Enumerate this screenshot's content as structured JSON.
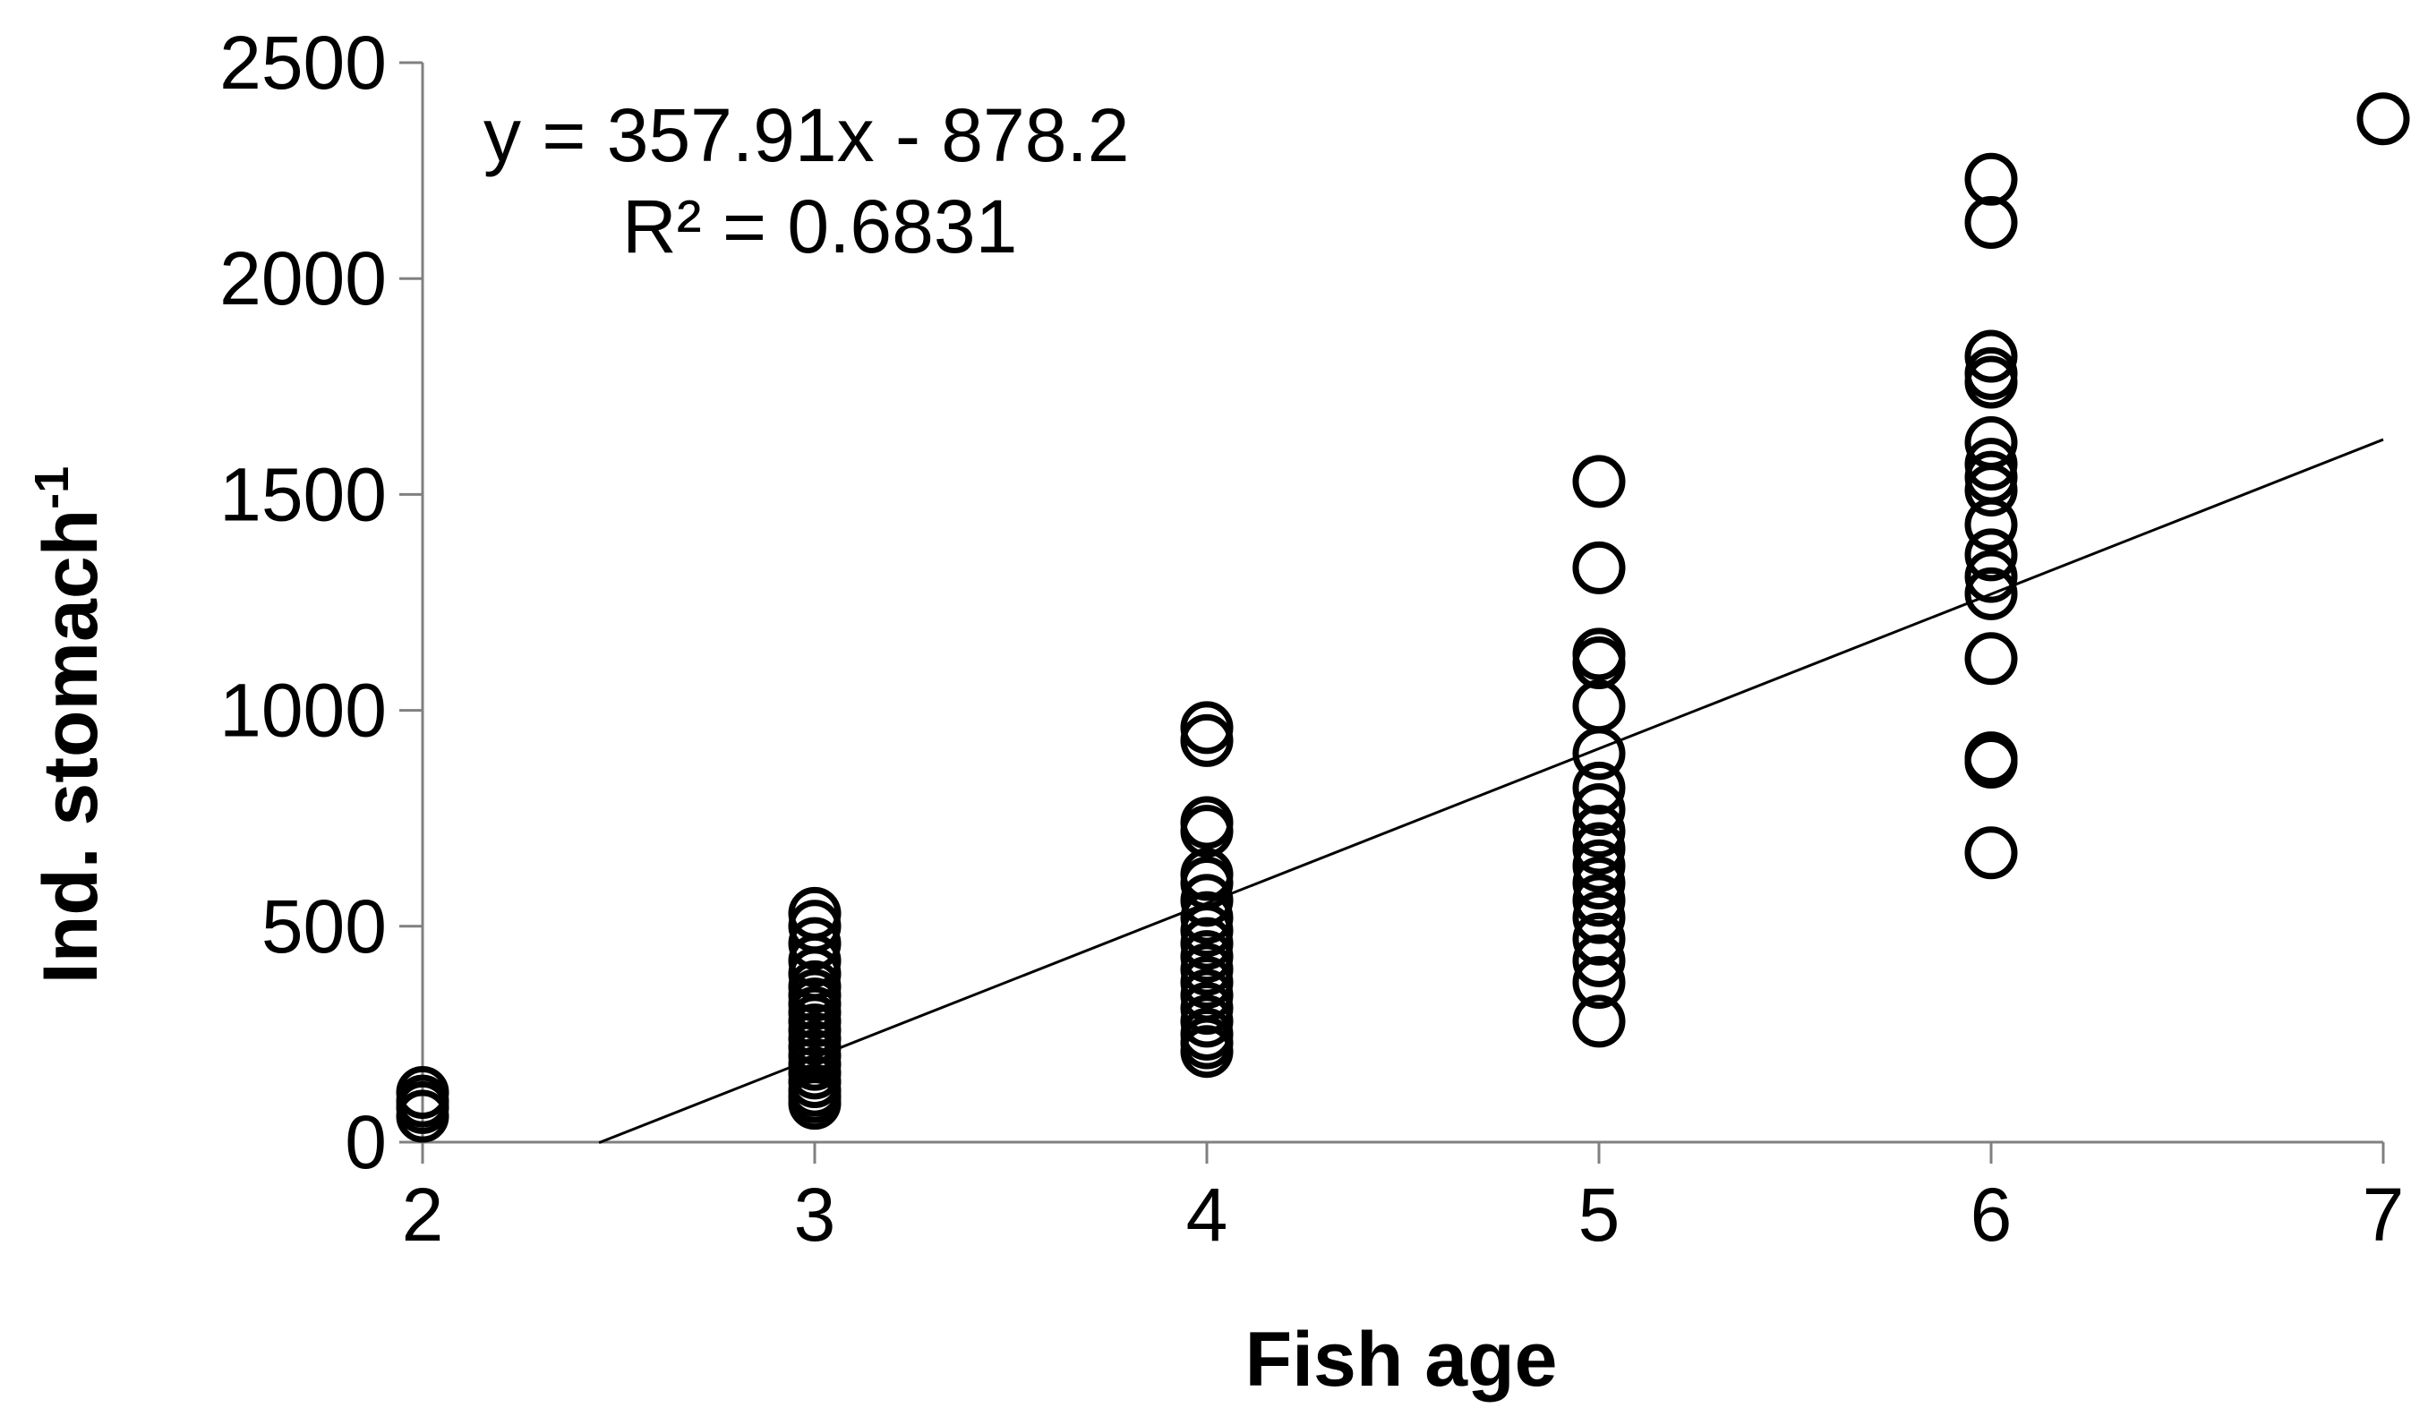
{
  "chart_data": {
    "type": "scatter",
    "title": "",
    "xlabel": "Fish age",
    "ylabel_main": "Ind. stomach",
    "ylabel_superscript": "-1",
    "xlim": [
      2,
      7
    ],
    "ylim": [
      0,
      2500
    ],
    "xticks": [
      "2",
      "3",
      "4",
      "5",
      "6",
      "7"
    ],
    "yticks": [
      "0",
      "500",
      "1000",
      "1500",
      "2000",
      "2500"
    ],
    "grid": false,
    "legend": "none",
    "trendline": {
      "equation": "y = 357.91x - 878.2",
      "r2_label": "R² = 0.6831",
      "slope": 357.91,
      "intercept": -878.2,
      "x_range": [
        2.45,
        7
      ]
    },
    "points": [
      {
        "x": 2,
        "y": 60
      },
      {
        "x": 2,
        "y": 80
      },
      {
        "x": 2,
        "y": 95
      },
      {
        "x": 2,
        "y": 115
      },
      {
        "x": 3,
        "y": 90
      },
      {
        "x": 3,
        "y": 105
      },
      {
        "x": 3,
        "y": 120
      },
      {
        "x": 3,
        "y": 140
      },
      {
        "x": 3,
        "y": 160
      },
      {
        "x": 3,
        "y": 180
      },
      {
        "x": 3,
        "y": 200
      },
      {
        "x": 3,
        "y": 220
      },
      {
        "x": 3,
        "y": 240
      },
      {
        "x": 3,
        "y": 260
      },
      {
        "x": 3,
        "y": 280
      },
      {
        "x": 3,
        "y": 300
      },
      {
        "x": 3,
        "y": 320
      },
      {
        "x": 3,
        "y": 340
      },
      {
        "x": 3,
        "y": 360
      },
      {
        "x": 3,
        "y": 390
      },
      {
        "x": 3,
        "y": 420
      },
      {
        "x": 3,
        "y": 460
      },
      {
        "x": 3,
        "y": 500
      },
      {
        "x": 3,
        "y": 530
      },
      {
        "x": 4,
        "y": 210
      },
      {
        "x": 4,
        "y": 230
      },
      {
        "x": 4,
        "y": 250
      },
      {
        "x": 4,
        "y": 280
      },
      {
        "x": 4,
        "y": 310
      },
      {
        "x": 4,
        "y": 340
      },
      {
        "x": 4,
        "y": 370
      },
      {
        "x": 4,
        "y": 400
      },
      {
        "x": 4,
        "y": 430
      },
      {
        "x": 4,
        "y": 460
      },
      {
        "x": 4,
        "y": 490
      },
      {
        "x": 4,
        "y": 520
      },
      {
        "x": 4,
        "y": 560
      },
      {
        "x": 4,
        "y": 600
      },
      {
        "x": 4,
        "y": 620
      },
      {
        "x": 4,
        "y": 720
      },
      {
        "x": 4,
        "y": 740
      },
      {
        "x": 4,
        "y": 930
      },
      {
        "x": 4,
        "y": 960
      },
      {
        "x": 5,
        "y": 280
      },
      {
        "x": 5,
        "y": 370
      },
      {
        "x": 5,
        "y": 420
      },
      {
        "x": 5,
        "y": 470
      },
      {
        "x": 5,
        "y": 520
      },
      {
        "x": 5,
        "y": 560
      },
      {
        "x": 5,
        "y": 600
      },
      {
        "x": 5,
        "y": 640
      },
      {
        "x": 5,
        "y": 680
      },
      {
        "x": 5,
        "y": 720
      },
      {
        "x": 5,
        "y": 770
      },
      {
        "x": 5,
        "y": 820
      },
      {
        "x": 5,
        "y": 900
      },
      {
        "x": 5,
        "y": 1010
      },
      {
        "x": 5,
        "y": 1110
      },
      {
        "x": 5,
        "y": 1130
      },
      {
        "x": 5,
        "y": 1330
      },
      {
        "x": 5,
        "y": 1530
      },
      {
        "x": 6,
        "y": 670
      },
      {
        "x": 6,
        "y": 880
      },
      {
        "x": 6,
        "y": 890
      },
      {
        "x": 6,
        "y": 1120
      },
      {
        "x": 6,
        "y": 1270
      },
      {
        "x": 6,
        "y": 1310
      },
      {
        "x": 6,
        "y": 1360
      },
      {
        "x": 6,
        "y": 1430
      },
      {
        "x": 6,
        "y": 1510
      },
      {
        "x": 6,
        "y": 1540
      },
      {
        "x": 6,
        "y": 1570
      },
      {
        "x": 6,
        "y": 1620
      },
      {
        "x": 6,
        "y": 1760
      },
      {
        "x": 6,
        "y": 1780
      },
      {
        "x": 6,
        "y": 1820
      },
      {
        "x": 6,
        "y": 2130
      },
      {
        "x": 6,
        "y": 2230
      },
      {
        "x": 7,
        "y": 2370
      }
    ]
  }
}
